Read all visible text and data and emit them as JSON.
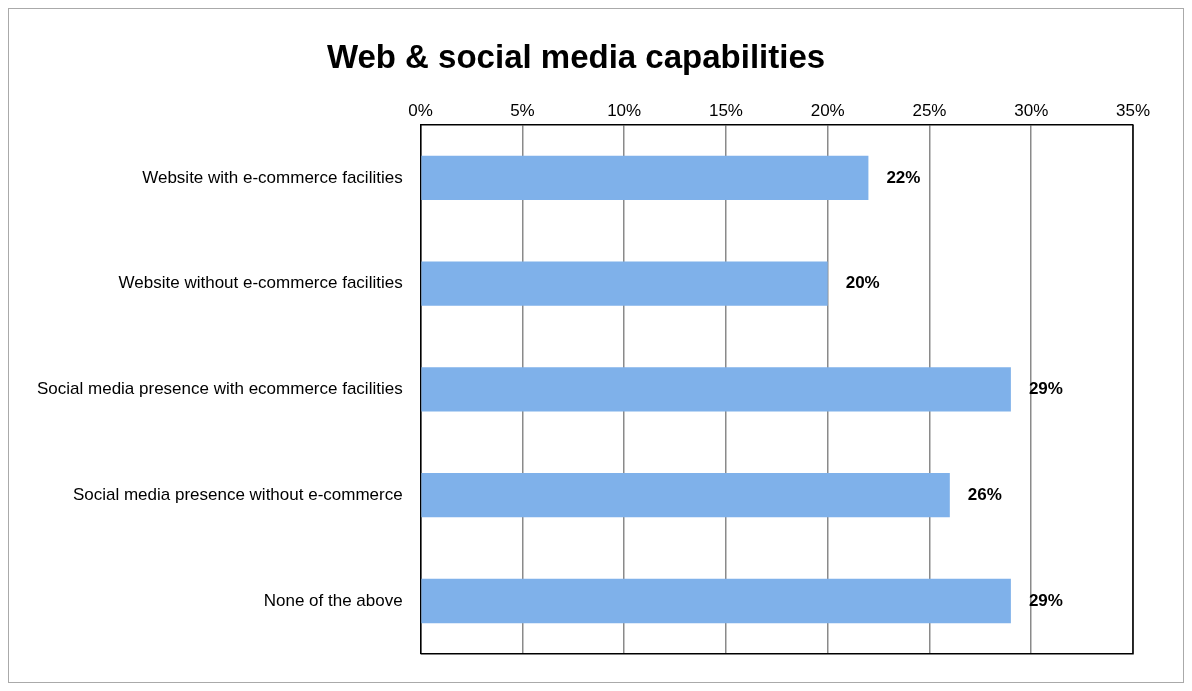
{
  "chart_data": {
    "type": "bar",
    "orientation": "horizontal",
    "title": "Web & social media capabilities",
    "categories": [
      "Website with e-commerce facilities",
      "Website without e-commerce facilities",
      "Social media presence with ecommerce facilities",
      "Social media presence without e-commerce",
      "None of the above"
    ],
    "values": [
      22,
      20,
      29,
      26,
      29
    ],
    "value_labels": [
      "22%",
      "20%",
      "29%",
      "26%",
      "29%"
    ],
    "color": "#7fb1ea",
    "xlim": [
      0,
      35
    ],
    "xticks": [
      {
        "value": 0,
        "label": "0%"
      },
      {
        "value": 5,
        "label": "5%"
      },
      {
        "value": 10,
        "label": "10%"
      },
      {
        "value": 15,
        "label": "15%"
      },
      {
        "value": 20,
        "label": "20%"
      },
      {
        "value": 25,
        "label": "25%"
      },
      {
        "value": 30,
        "label": "30%"
      },
      {
        "value": 35,
        "label": "35%"
      }
    ],
    "grid": "x",
    "legend": false
  }
}
